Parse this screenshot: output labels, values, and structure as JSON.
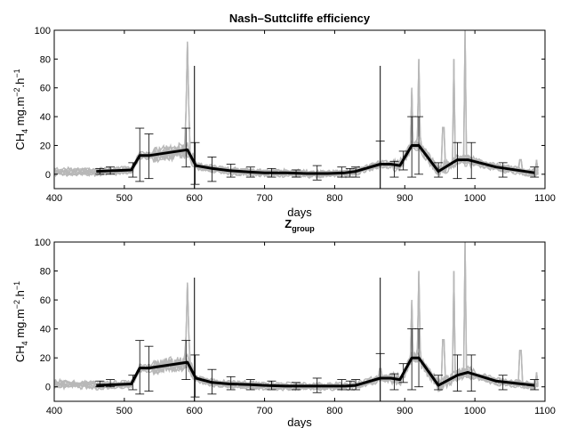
{
  "chart_data": [
    {
      "type": "line",
      "title": "Nash–Suttcliffe efficiency",
      "title_sub": "",
      "xlabel": "days",
      "ylabel": {
        "main": "CH",
        "s1": "4",
        "mid": " mg.m",
        "s2": "−2",
        "mid2": ".h",
        "s3": "−1"
      },
      "xlim": [
        400,
        1100
      ],
      "ylim": [
        -10,
        100
      ],
      "xticks": [
        400,
        500,
        600,
        700,
        800,
        900,
        1000,
        1100
      ],
      "yticks": [
        0,
        20,
        40,
        60,
        80,
        100
      ],
      "grid": false,
      "colors": {
        "mean": "#000000",
        "ensemble": "#b8b8b8",
        "errorbar": "#000000"
      },
      "mean_line": {
        "x": [
          460,
          510,
          522,
          535,
          590,
          602,
          625,
          650,
          680,
          700,
          730,
          760,
          790,
          815,
          830,
          865,
          880,
          893,
          910,
          920,
          948,
          975,
          990,
          1030,
          1085
        ],
        "y": [
          2,
          3,
          13,
          13,
          17,
          6,
          4,
          2.5,
          1.5,
          1,
          1,
          0.5,
          0.5,
          1,
          2,
          7,
          7,
          6,
          20,
          20,
          2,
          10,
          10,
          5,
          1
        ]
      },
      "errorbars": [
        {
          "x": 465,
          "low": 0,
          "high": 4
        },
        {
          "x": 480,
          "low": 0,
          "high": 5
        },
        {
          "x": 512,
          "low": -2,
          "high": 8
        },
        {
          "x": 522,
          "low": -5,
          "high": 32
        },
        {
          "x": 535,
          "low": -3,
          "high": 28
        },
        {
          "x": 588,
          "low": 5,
          "high": 32
        },
        {
          "x": 601,
          "low": -7,
          "high": 22
        },
        {
          "x": 625,
          "low": -5,
          "high": 12
        },
        {
          "x": 652,
          "low": -2,
          "high": 7
        },
        {
          "x": 680,
          "low": -2,
          "high": 5
        },
        {
          "x": 710,
          "low": -2,
          "high": 4
        },
        {
          "x": 745,
          "low": -2,
          "high": 3
        },
        {
          "x": 775,
          "low": -4,
          "high": 6
        },
        {
          "x": 810,
          "low": -2,
          "high": 5
        },
        {
          "x": 822,
          "low": -2,
          "high": 4
        },
        {
          "x": 830,
          "low": -2,
          "high": 5
        },
        {
          "x": 865,
          "low": -10,
          "high": 23
        },
        {
          "x": 885,
          "low": -2,
          "high": 9
        },
        {
          "x": 898,
          "low": 3,
          "high": 16
        },
        {
          "x": 910,
          "low": -2,
          "high": 40
        },
        {
          "x": 920,
          "low": 0,
          "high": 40
        },
        {
          "x": 948,
          "low": -2,
          "high": 8
        },
        {
          "x": 975,
          "low": -3,
          "high": 22
        },
        {
          "x": 995,
          "low": -3,
          "high": 22
        },
        {
          "x": 1040,
          "low": -2,
          "high": 8
        },
        {
          "x": 1085,
          "low": -2,
          "high": 5
        }
      ],
      "vertical_lines": [
        600,
        865
      ]
    },
    {
      "type": "line",
      "title": "Z",
      "title_sub": "group",
      "xlabel": "days",
      "ylabel": {
        "main": "CH",
        "s1": "4",
        "mid": " mg.m",
        "s2": "−2",
        "mid2": ".h",
        "s3": "−1"
      },
      "xlim": [
        400,
        1100
      ],
      "ylim": [
        -10,
        100
      ],
      "xticks": [
        400,
        500,
        600,
        700,
        800,
        900,
        1000,
        1100
      ],
      "yticks": [
        0,
        20,
        40,
        60,
        80,
        100
      ],
      "grid": false,
      "colors": {
        "mean": "#000000",
        "ensemble": "#b8b8b8",
        "errorbar": "#000000"
      },
      "mean_line": {
        "x": [
          460,
          510,
          522,
          535,
          590,
          602,
          625,
          650,
          680,
          700,
          730,
          760,
          790,
          815,
          830,
          865,
          880,
          893,
          910,
          920,
          948,
          975,
          990,
          1030,
          1085
        ],
        "y": [
          1,
          2,
          13,
          13,
          17,
          6,
          3,
          2,
          1.5,
          1,
          0.5,
          0.5,
          0.5,
          0.5,
          1,
          6,
          6,
          5,
          20,
          20,
          1,
          8,
          10,
          4,
          1
        ]
      },
      "errorbars": [
        {
          "x": 465,
          "low": 0,
          "high": 4
        },
        {
          "x": 480,
          "low": 0,
          "high": 5
        },
        {
          "x": 512,
          "low": -2,
          "high": 8
        },
        {
          "x": 522,
          "low": -5,
          "high": 32
        },
        {
          "x": 535,
          "low": -3,
          "high": 28
        },
        {
          "x": 588,
          "low": 5,
          "high": 32
        },
        {
          "x": 601,
          "low": -7,
          "high": 22
        },
        {
          "x": 625,
          "low": -5,
          "high": 12
        },
        {
          "x": 652,
          "low": -2,
          "high": 7
        },
        {
          "x": 680,
          "low": -2,
          "high": 5
        },
        {
          "x": 710,
          "low": -2,
          "high": 4
        },
        {
          "x": 745,
          "low": -2,
          "high": 3
        },
        {
          "x": 775,
          "low": -4,
          "high": 6
        },
        {
          "x": 810,
          "low": -2,
          "high": 5
        },
        {
          "x": 822,
          "low": -2,
          "high": 4
        },
        {
          "x": 830,
          "low": -2,
          "high": 5
        },
        {
          "x": 865,
          "low": -10,
          "high": 23
        },
        {
          "x": 885,
          "low": -2,
          "high": 9
        },
        {
          "x": 898,
          "low": 3,
          "high": 16
        },
        {
          "x": 910,
          "low": -2,
          "high": 40
        },
        {
          "x": 920,
          "low": 0,
          "high": 40
        },
        {
          "x": 948,
          "low": -2,
          "high": 8
        },
        {
          "x": 975,
          "low": -3,
          "high": 22
        },
        {
          "x": 995,
          "low": -3,
          "high": 22
        },
        {
          "x": 1040,
          "low": -2,
          "high": 8
        },
        {
          "x": 1085,
          "low": -2,
          "high": 5
        }
      ],
      "vertical_lines": [
        600,
        865
      ]
    }
  ]
}
